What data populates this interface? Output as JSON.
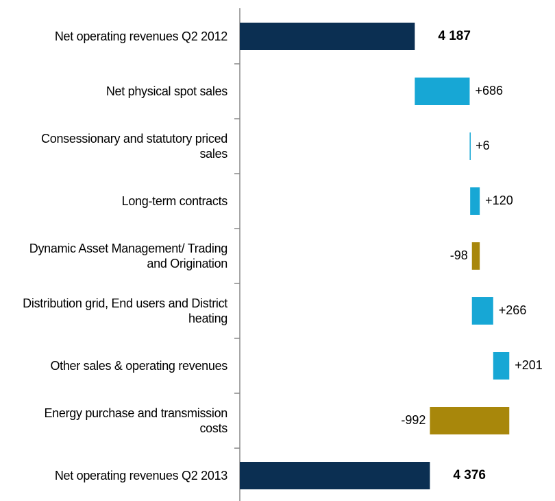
{
  "chart_data": {
    "type": "waterfall",
    "categories": [
      "Net operating revenues Q2 2012",
      "Net physical spot sales",
      "Consessionary and statutory priced sales",
      "Long-term contracts",
      "Dynamic Asset Management/ Trading and Origination",
      "Distribution grid, End users and District heating",
      "Other sales & operating revenues",
      "Energy purchase and transmission costs",
      "Net operating revenues Q2 2013"
    ],
    "values": [
      4187,
      686,
      6,
      120,
      -98,
      266,
      201,
      -992,
      4376
    ],
    "value_labels": [
      "4 187",
      "+686",
      "+6",
      "+120",
      "-98",
      "+266",
      "+201",
      "-992",
      "4 376"
    ],
    "measure": [
      "total",
      "relative",
      "relative",
      "relative",
      "relative",
      "relative",
      "relative",
      "relative",
      "total"
    ],
    "colors": {
      "total": "#0b2f52",
      "increase": "#17a7d5",
      "decrease": "#a8870b"
    },
    "xlim": [
      2000,
      5400
    ]
  }
}
